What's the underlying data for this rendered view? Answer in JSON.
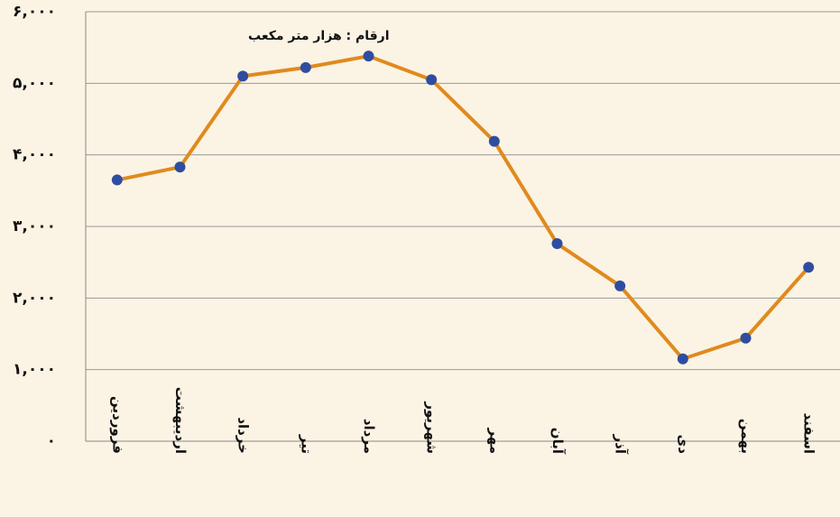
{
  "chart_data": {
    "type": "line",
    "annotation": "ارقام : هزار متر مکعب",
    "categories": [
      "فروردین",
      "اردیبهشت",
      "خرداد",
      "تیر",
      "مرداد",
      "شهریور",
      "مهر",
      "آبان",
      "آذر",
      "دی",
      "بهمن",
      "اسفند"
    ],
    "series": [
      {
        "color": "#e08a1e",
        "marker_color": "#2f4da0",
        "values": [
          3650,
          3830,
          5100,
          5220,
          5380,
          5050,
          4190,
          2760,
          2170,
          1150,
          1440,
          2430
        ]
      }
    ],
    "ylim": [
      0,
      6000
    ],
    "yticks": [
      {
        "value": 0,
        "label": "۰"
      },
      {
        "value": 1000,
        "label": "۱,۰۰۰"
      },
      {
        "value": 2000,
        "label": "۲,۰۰۰"
      },
      {
        "value": 3000,
        "label": "۳,۰۰۰"
      },
      {
        "value": 4000,
        "label": "۴,۰۰۰"
      },
      {
        "value": 5000,
        "label": "۵,۰۰۰"
      },
      {
        "value": 6000,
        "label": "۶,۰۰۰"
      }
    ],
    "grid": true
  }
}
